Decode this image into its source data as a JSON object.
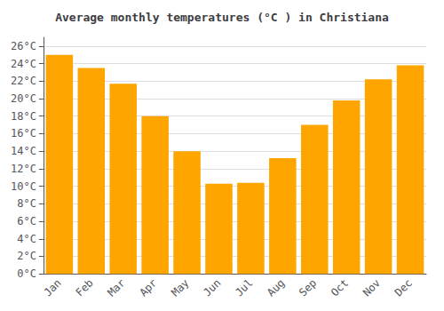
{
  "chart_data": {
    "type": "bar",
    "title": "Average monthly temperatures (°C ) in Christiana",
    "categories": [
      "Jan",
      "Feb",
      "Mar",
      "Apr",
      "May",
      "Jun",
      "Jul",
      "Aug",
      "Sep",
      "Oct",
      "Nov",
      "Dec"
    ],
    "values": [
      25.0,
      23.5,
      21.7,
      18.0,
      14.0,
      10.3,
      10.4,
      13.2,
      17.0,
      19.8,
      22.2,
      23.8
    ],
    "color": "#FFA500",
    "ylim": [
      0,
      27
    ],
    "yticks": [
      {
        "value": 0,
        "label": "0°C"
      },
      {
        "value": 2,
        "label": "2°C"
      },
      {
        "value": 4,
        "label": "4°C"
      },
      {
        "value": 6,
        "label": "6°C"
      },
      {
        "value": 8,
        "label": "8°C"
      },
      {
        "value": 10,
        "label": "10°C"
      },
      {
        "value": 12,
        "label": "12°C"
      },
      {
        "value": 14,
        "label": "14°C"
      },
      {
        "value": 16,
        "label": "16°C"
      },
      {
        "value": 18,
        "label": "18°C"
      },
      {
        "value": 20,
        "label": "20°C"
      },
      {
        "value": 22,
        "label": "22°C"
      },
      {
        "value": 24,
        "label": "24°C"
      },
      {
        "value": 26,
        "label": "26°C"
      }
    ],
    "grid": true
  }
}
